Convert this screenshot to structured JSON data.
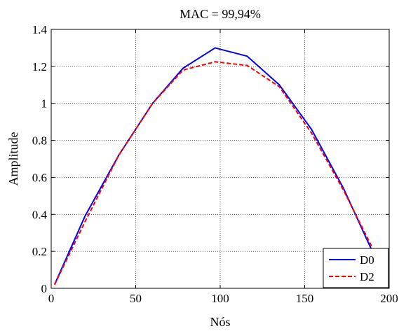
{
  "chart_data": {
    "type": "line",
    "title": "MAC = 99,94%",
    "xlabel": "Nós",
    "ylabel": "Amplitude",
    "xlim": [
      0,
      200
    ],
    "ylim": [
      0,
      1.4
    ],
    "xticks": [
      0,
      50,
      100,
      150,
      200
    ],
    "xtick_labels": [
      "0",
      "50",
      "100",
      "150",
      "200"
    ],
    "yticks": [
      0,
      0.2,
      0.4,
      0.6,
      0.8,
      1.0,
      1.2,
      1.4
    ],
    "ytick_labels": [
      "0",
      "0.2",
      "0.4",
      "0.6",
      "0.8",
      "1",
      "1.2",
      "1.4"
    ],
    "grid": "dotted",
    "legend_position": "bottom-right",
    "series": [
      {
        "name": "D0",
        "color": "#0000ff",
        "style": "solid",
        "x": [
          2,
          20,
          40,
          60,
          78,
          97,
          116,
          135,
          154,
          173,
          190
        ],
        "y": [
          0.02,
          0.39,
          0.72,
          1.0,
          1.19,
          1.3,
          1.255,
          1.1,
          0.86,
          0.54,
          0.2
        ]
      },
      {
        "name": "D2",
        "color": "#ff0000",
        "style": "dashed",
        "x": [
          2,
          20,
          40,
          60,
          78,
          97,
          116,
          135,
          154,
          173,
          190
        ],
        "y": [
          0.02,
          0.36,
          0.72,
          1.0,
          1.18,
          1.225,
          1.205,
          1.09,
          0.84,
          0.53,
          0.22
        ]
      }
    ]
  }
}
